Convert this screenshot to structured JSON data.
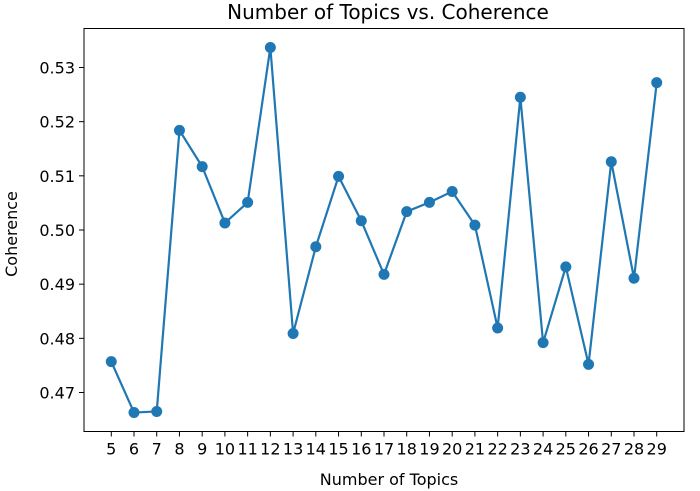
{
  "chart_data": {
    "type": "line",
    "title": "Number of Topics vs. Coherence",
    "xlabel": "Number of Topics",
    "ylabel": "Coherence",
    "x": [
      5,
      6,
      7,
      8,
      9,
      10,
      11,
      12,
      13,
      14,
      15,
      16,
      17,
      18,
      19,
      20,
      21,
      22,
      23,
      24,
      25,
      26,
      27,
      28,
      29
    ],
    "series": [
      {
        "values": [
          0.4757,
          0.4663,
          0.4665,
          0.5184,
          0.5117,
          0.5013,
          0.5051,
          0.5337,
          0.4809,
          0.4969,
          0.5099,
          0.5017,
          0.4918,
          0.5034,
          0.5051,
          0.5071,
          0.5009,
          0.4819,
          0.5245,
          0.4792,
          0.4932,
          0.4752,
          0.5126,
          0.4911,
          0.5272
        ],
        "color": "#1f77b4",
        "marker": "circle"
      }
    ],
    "xticks": [
      "5",
      "6",
      "7",
      "8",
      "9",
      "10",
      "11",
      "12",
      "13",
      "14",
      "15",
      "16",
      "17",
      "18",
      "19",
      "20",
      "21",
      "22",
      "23",
      "24",
      "25",
      "26",
      "27",
      "28",
      "29"
    ],
    "yticks": [
      0.47,
      0.48,
      0.49,
      0.5,
      0.51,
      0.52,
      0.53
    ],
    "ytick_labels": [
      "0.47",
      "0.48",
      "0.49",
      "0.50",
      "0.51",
      "0.52",
      "0.53"
    ],
    "xlim": [
      3.8,
      30.2
    ],
    "ylim": [
      0.4628,
      0.5372
    ],
    "grid": false,
    "legend": "none"
  }
}
